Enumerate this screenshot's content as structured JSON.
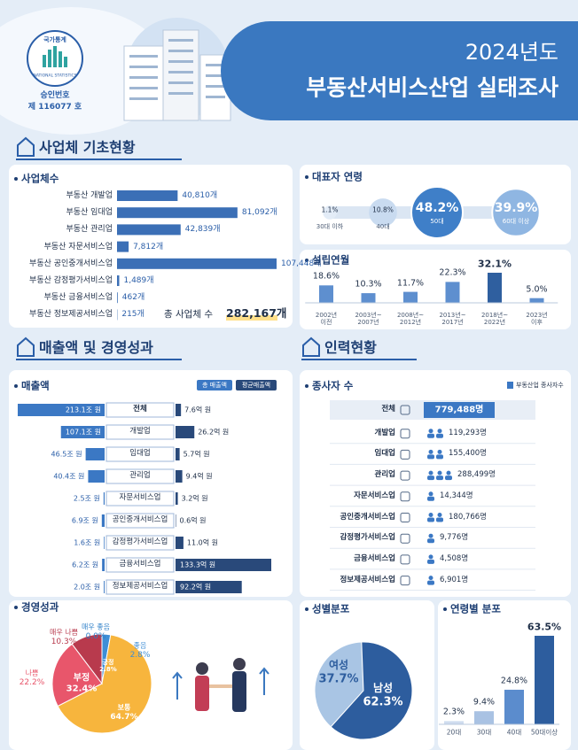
{
  "header": {
    "badge_top": "국가통계",
    "badge_bottom": "NATIONAL STATISTICS",
    "approval_label": "승인번호",
    "approval_number": "제 116077 호",
    "year": "2024년도",
    "title": "부동산서비스산업 실태조사"
  },
  "sections": [
    "사업체 기초현황",
    "매출액 및 경영성과",
    "인력현황"
  ],
  "chart_data": [
    {
      "type": "bar",
      "orientation": "horizontal",
      "title": "사업체수",
      "categories": [
        "부동산 개발업",
        "부동산 임대업",
        "부동산 관리업",
        "부동산 자문서비스업",
        "부동산 공인중개서비스업",
        "부동산 감정평가서비스업",
        "부동산 금융서비스업",
        "부동산 정보제공서비스업"
      ],
      "values": [
        40810,
        81092,
        42839,
        7812,
        107448,
        1489,
        462,
        215
      ],
      "value_labels": [
        "40,810개",
        "81,092개",
        "42,839개",
        "7,812개",
        "107,448개",
        "1,489개",
        "462개",
        "215개"
      ],
      "color": "#3b6fb6",
      "total": {
        "label": "총 사업체 수",
        "value": 282167,
        "value_label": "282,167개"
      }
    },
    {
      "type": "bubble",
      "title": "대표자 연령",
      "categories": [
        "30대 이하",
        "40대",
        "50대",
        "60대 이상"
      ],
      "values": [
        1.1,
        10.8,
        48.2,
        39.9
      ],
      "value_labels": [
        "1.1%",
        "10.8%",
        "48.2%",
        "39.9%"
      ],
      "colors": [
        "#e3ecf7",
        "#c9dbf0",
        "#3f7fc8",
        "#8fb6e2"
      ]
    },
    {
      "type": "bar",
      "orientation": "vertical",
      "title": "설립연월",
      "categories": [
        "2002년\n이전",
        "2003년~\n2007년",
        "2008년~\n2012년",
        "2013년~\n2017년",
        "2018년~\n2022년",
        "2023년\n이후"
      ],
      "values": [
        18.6,
        10.3,
        11.7,
        22.3,
        32.1,
        5.0
      ],
      "value_labels": [
        "18.6%",
        "10.3%",
        "11.7%",
        "22.3%",
        "32.1%",
        "5.0%"
      ],
      "colors": [
        "#5e8fcf",
        "#5e8fcf",
        "#5e8fcf",
        "#5e8fcf",
        "#2f5f9f",
        "#5e8fcf"
      ]
    },
    {
      "type": "diverging_bar",
      "title": "매출액",
      "categories": [
        "전체",
        "개발업",
        "임대업",
        "관리업",
        "자문서비스업",
        "공인중개서비스업",
        "감정평가서비스업",
        "금융서비스업",
        "정보제공서비스업"
      ],
      "series": [
        {
          "name": "총 매출액",
          "color": "#3b78c4",
          "values": [
            213.1,
            107.1,
            46.5,
            40.4,
            2.5,
            6.9,
            1.6,
            6.2,
            2.0
          ],
          "value_labels": [
            "213.1조 원",
            "107.1조 원",
            "46.5조 원",
            "40.4조 원",
            "2.5조 원",
            "6.9조 원",
            "1.6조 원",
            "6.2조 원",
            "2.0조 원"
          ]
        },
        {
          "name": "평균매출액",
          "color": "#29497a",
          "values": [
            7.6,
            26.2,
            5.7,
            9.4,
            3.2,
            0.6,
            11.0,
            133.3,
            92.2
          ],
          "value_labels": [
            "7.6억 원",
            "26.2억 원",
            "5.7억 원",
            "9.4억 원",
            "3.2억 원",
            "0.6억 원",
            "11.0억 원",
            "133.3억 원",
            "92.2억 원"
          ]
        }
      ]
    },
    {
      "type": "pie",
      "title": "경영성과",
      "categories": [
        "매우 좋음",
        "좋음",
        "보통",
        "나쁨",
        "매우 나쁨"
      ],
      "values": [
        0.0,
        2.8,
        64.7,
        22.2,
        10.3
      ],
      "value_labels": [
        "0.0%",
        "2.8%",
        "64.7%",
        "22.2%",
        "10.3%"
      ],
      "colors": [
        "#2d7fc8",
        "#3e8ed6",
        "#f7b53d",
        "#e8566b",
        "#b83a4d"
      ],
      "groups": {
        "categories": [
          "긍정",
          "부정"
        ],
        "values": [
          2.8,
          32.4
        ],
        "value_labels": [
          "2.8%",
          "32.4%"
        ]
      }
    },
    {
      "type": "table",
      "title": "종사자 수",
      "categories": [
        "전체",
        "개발업",
        "임대업",
        "관리업",
        "자문서비스업",
        "공인중개서비스업",
        "감정평가서비스업",
        "금융서비스업",
        "정보제공서비스업"
      ],
      "series": [
        {
          "name": "부동산업 종사자수",
          "color": "#3b78c4",
          "values": [
            779488,
            119293,
            155400,
            288499,
            14344,
            180766,
            9776,
            4508,
            6901
          ],
          "value_labels": [
            "779,488명",
            "119,293명",
            "155,400명",
            "288,499명",
            "14,344명",
            "180,766명",
            "9,776명",
            "4,508명",
            "6,901명"
          ]
        }
      ]
    },
    {
      "type": "pie",
      "title": "성별분포",
      "categories": [
        "여성",
        "남성"
      ],
      "values": [
        37.7,
        62.3
      ],
      "value_labels": [
        "37.7%",
        "62.3%"
      ],
      "colors": [
        "#a9c5e4",
        "#2d5d9e"
      ]
    },
    {
      "type": "bar",
      "orientation": "vertical",
      "title": "연령별 분포",
      "categories": [
        "20대",
        "30대",
        "40대",
        "50대이상"
      ],
      "values": [
        2.3,
        9.4,
        24.8,
        63.5
      ],
      "value_labels": [
        "2.3%",
        "9.4%",
        "24.8%",
        "63.5%"
      ],
      "colors": [
        "#cfdcef",
        "#a9c2e3",
        "#5b8ccd",
        "#2d5d9e"
      ]
    }
  ]
}
